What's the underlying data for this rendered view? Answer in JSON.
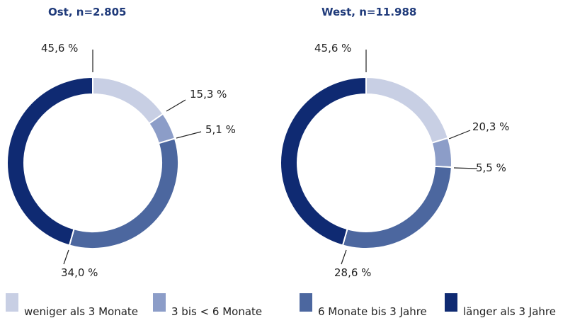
{
  "chart_data": [
    {
      "type": "pie",
      "title": "Ost, n=2.805",
      "categories": [
        "weniger als 3 Monate",
        "3 bis < 6 Monate",
        "6 Monate bis 3 Jahre",
        "länger als 3 Jahre"
      ],
      "values": [
        15.3,
        5.1,
        34.0,
        45.6
      ],
      "value_labels": [
        "15,3 %",
        "5,1 %",
        "34,0 %",
        "45,6 %"
      ],
      "colors": [
        "#c8cfe4",
        "#8c9dc8",
        "#4c679f",
        "#0f2a72"
      ]
    },
    {
      "type": "pie",
      "title": "West, n=11.988",
      "categories": [
        "weniger als 3 Monate",
        "3 bis < 6 Monate",
        "6 Monate bis 3 Jahre",
        "länger als 3 Jahre"
      ],
      "values": [
        20.3,
        5.5,
        28.6,
        45.6
      ],
      "value_labels": [
        "20,3 %",
        "5,5 %",
        "28,6 %",
        "45,6 %"
      ],
      "colors": [
        "#c8cfe4",
        "#8c9dc8",
        "#4c679f",
        "#0f2a72"
      ]
    }
  ]
}
